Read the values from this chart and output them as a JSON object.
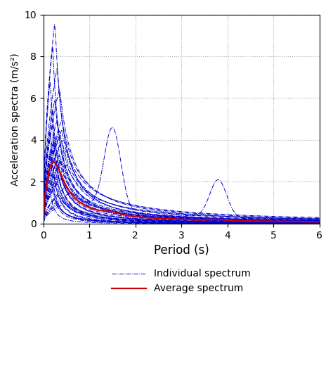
{
  "title": "",
  "xlabel": "Period (s)",
  "ylabel": "Acceleration spectra (m/s²)",
  "xlim": [
    0,
    6
  ],
  "ylim": [
    0,
    10
  ],
  "xticks": [
    0,
    1,
    2,
    3,
    4,
    5,
    6
  ],
  "yticks": [
    0,
    2,
    4,
    6,
    8,
    10
  ],
  "grid_color": "#aaaaaa",
  "individual_color": "#0000cc",
  "average_color": "#cc0000",
  "individual_linestyle": "-.",
  "average_linestyle": "-",
  "individual_linewidth": 0.7,
  "average_linewidth": 1.6,
  "legend_individual": "Individual spectrum",
  "legend_average": "Average spectrum",
  "xlabel_fontsize": 12,
  "ylabel_fontsize": 10,
  "tick_fontsize": 10,
  "legend_fontsize": 10
}
